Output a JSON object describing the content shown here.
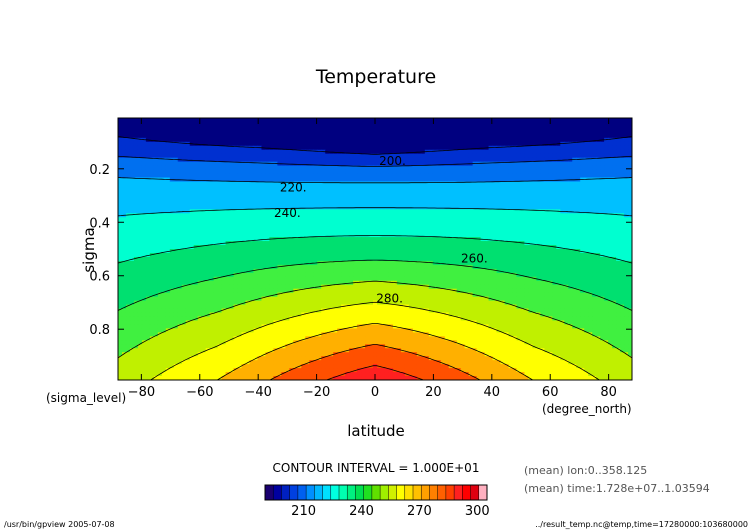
{
  "chart_data": {
    "type": "heatmap",
    "title": "Temperature",
    "xlabel": "latitude",
    "ylabel": "sigma",
    "x_unit_label": "(degree_north)",
    "y_unit_label": "(sigma_level)",
    "xlim": [
      -88,
      88
    ],
    "ylim": [
      0.01,
      0.99
    ],
    "y_reversed": true,
    "x_ticks": [
      -80,
      -60,
      -40,
      -20,
      0,
      20,
      40,
      60,
      80
    ],
    "y_ticks": [
      0.2,
      0.4,
      0.6,
      0.8
    ],
    "y_tick_labels": [
      "0.2",
      "0.4",
      "0.6",
      "0.8"
    ],
    "contour_interval_text": "CONTOUR INTERVAL = 1.000E+01",
    "contour_labels": [
      {
        "text": "200.",
        "lat": 6,
        "sigma": 0.17
      },
      {
        "text": "220.",
        "lat": -28,
        "sigma": 0.27
      },
      {
        "text": "240.",
        "lat": -30,
        "sigma": 0.365
      },
      {
        "text": "260.",
        "lat": 34,
        "sigma": 0.535
      },
      {
        "text": "280.",
        "lat": 5,
        "sigma": 0.685
      }
    ],
    "levels": [
      200,
      210,
      220,
      230,
      240,
      250,
      260,
      270,
      280,
      290,
      300
    ],
    "colorbar": {
      "ticks": [
        210,
        240,
        270,
        300
      ],
      "tick_labels": [
        "210",
        "240",
        "270",
        "300"
      ],
      "vmin": 190,
      "vmax": 305
    },
    "colors": [
      "#000080",
      "#0030d0",
      "#0070f0",
      "#00c0ff",
      "#00ffd0",
      "#00e070",
      "#40f040",
      "#c0f000",
      "#ffff00",
      "#ffb000",
      "#ff5000",
      "#ff2020",
      "#ffa0b0"
    ],
    "colorbar_colors": [
      "#1a0070",
      "#0000a0",
      "#0020c0",
      "#0040e0",
      "#0060f0",
      "#0090ff",
      "#00b8ff",
      "#00e0ff",
      "#00ffe0",
      "#00ffb0",
      "#00f080",
      "#00e050",
      "#20e020",
      "#60e000",
      "#a0f000",
      "#d0f000",
      "#ffff00",
      "#ffe000",
      "#ffc000",
      "#ffa000",
      "#ff8000",
      "#ff6000",
      "#ff4000",
      "#ff2020",
      "#ff0000",
      "#e00010",
      "#ffb0c0"
    ],
    "mean_annotations": [
      "(mean) lon:0..358.125",
      "(mean) time:1.728e+07..1.03594"
    ],
    "footer_left": "/usr/bin/gpview  2005-07-08",
    "footer_right": "../result_temp.nc@temp,time=17280000:103680000"
  }
}
